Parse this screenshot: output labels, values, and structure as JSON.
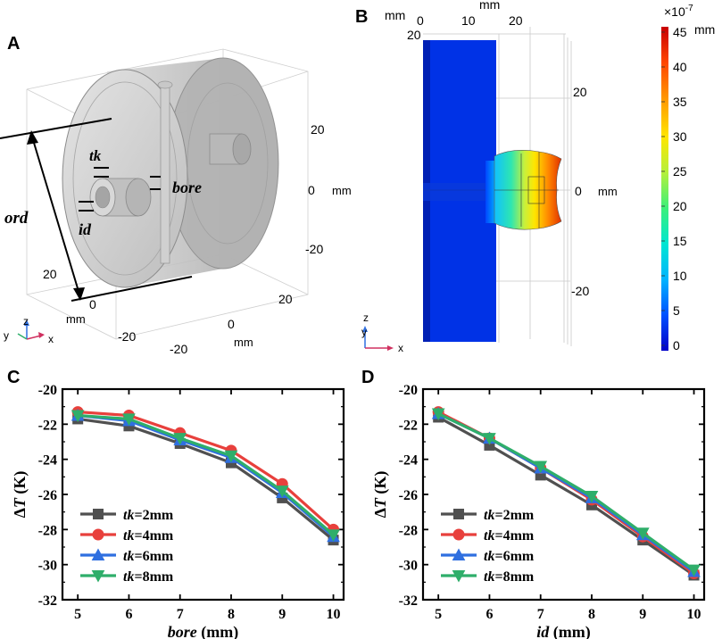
{
  "panels": {
    "A": {
      "letter": "A",
      "labels": {
        "tk": "tk",
        "bore": "bore",
        "ord": "ord",
        "id": "id"
      },
      "ticks_right": [
        "20",
        "0",
        "-20"
      ],
      "ticks_bottom_right": [
        "20",
        "0",
        "-20"
      ],
      "ticks_bottom_left": [
        "20",
        "0",
        "-20"
      ],
      "unit_right": "mm",
      "unit_bottom": "mm",
      "unit_left": "mm",
      "axes": {
        "z": "z",
        "y": "y",
        "x": "x"
      }
    },
    "B": {
      "letter": "B",
      "top_ticks": [
        "0",
        "10",
        "20"
      ],
      "top_unit": "mm",
      "left_label": "mm",
      "left_value": "20",
      "right_ticks": [
        "20",
        "0",
        "-20"
      ],
      "right_unit": "mm",
      "axes": {
        "z": "z",
        "y": "y",
        "x": "x"
      },
      "colorbar": {
        "exponent_base": "×10",
        "exponent_power": "-7",
        "unit": "mm",
        "ticks": [
          "45",
          "40",
          "35",
          "30",
          "25",
          "20",
          "15",
          "10",
          "5",
          "0"
        ],
        "stops": [
          "#0000c8",
          "#0050ff",
          "#00b4ff",
          "#00e6d2",
          "#3cf07a",
          "#b4f03c",
          "#ffe600",
          "#ff9600",
          "#ff4600",
          "#c80000"
        ]
      }
    }
  },
  "chart_data": [
    {
      "panel": "C",
      "type": "line",
      "letter": "C",
      "xlabel_italic": "bore",
      "xlabel_unit": " (mm)",
      "ylabel_delta": "Δ",
      "ylabel_var": "T",
      "ylabel_unit": " (K)",
      "x": [
        5,
        6,
        7,
        8,
        9,
        10
      ],
      "xticks": [
        "5",
        "6",
        "7",
        "8",
        "9",
        "10"
      ],
      "yticks": [
        "-20",
        "-22",
        "-24",
        "-26",
        "-28",
        "-30",
        "-32"
      ],
      "xlim": [
        4.7,
        10.2
      ],
      "ylim": [
        -32,
        -20
      ],
      "series": [
        {
          "name": "tk=2mm",
          "legend_var": "tk",
          "legend_val": "=2mm",
          "color": "#505050",
          "marker": "square",
          "values": [
            -21.7,
            -22.1,
            -23.1,
            -24.2,
            -26.2,
            -28.6
          ]
        },
        {
          "name": "tk=4mm",
          "legend_var": "tk",
          "legend_val": "=4mm",
          "color": "#e8403c",
          "marker": "circle",
          "values": [
            -21.3,
            -21.5,
            -22.5,
            -23.5,
            -25.4,
            -28.0
          ]
        },
        {
          "name": "tk=6mm",
          "legend_var": "tk",
          "legend_val": "=6mm",
          "color": "#2f6fe0",
          "marker": "triangle-up",
          "values": [
            -21.5,
            -21.8,
            -22.9,
            -23.9,
            -25.9,
            -28.4
          ]
        },
        {
          "name": "tk=8mm",
          "legend_var": "tk",
          "legend_val": "=8mm",
          "color": "#2fae6a",
          "marker": "triangle-down",
          "values": [
            -21.5,
            -21.7,
            -22.8,
            -23.8,
            -25.8,
            -28.3
          ]
        }
      ]
    },
    {
      "panel": "D",
      "type": "line",
      "letter": "D",
      "xlabel_italic": "id",
      "xlabel_unit": " (mm)",
      "ylabel_delta": "Δ",
      "ylabel_var": "T",
      "ylabel_unit": " (K)",
      "x": [
        5,
        6,
        7,
        8,
        9,
        10
      ],
      "xticks": [
        "5",
        "6",
        "7",
        "8",
        "9",
        "10"
      ],
      "yticks": [
        "-20",
        "-22",
        "-24",
        "-26",
        "-28",
        "-30",
        "-32"
      ],
      "xlim": [
        4.7,
        10.2
      ],
      "ylim": [
        -32,
        -20
      ],
      "series": [
        {
          "name": "tk=2mm",
          "legend_var": "tk",
          "legend_val": "=2mm",
          "color": "#505050",
          "marker": "square",
          "values": [
            -21.6,
            -23.2,
            -24.9,
            -26.6,
            -28.6,
            -30.6
          ]
        },
        {
          "name": "tk=4mm",
          "legend_var": "tk",
          "legend_val": "=4mm",
          "color": "#e8403c",
          "marker": "circle",
          "values": [
            -21.3,
            -22.8,
            -24.5,
            -26.3,
            -28.4,
            -30.5
          ]
        },
        {
          "name": "tk=6mm",
          "legend_var": "tk",
          "legend_val": "=6mm",
          "color": "#2f6fe0",
          "marker": "triangle-up",
          "values": [
            -21.4,
            -22.8,
            -24.5,
            -26.2,
            -28.3,
            -30.4
          ]
        },
        {
          "name": "tk=8mm",
          "legend_var": "tk",
          "legend_val": "=8mm",
          "color": "#2fae6a",
          "marker": "triangle-down",
          "values": [
            -21.4,
            -22.8,
            -24.4,
            -26.1,
            -28.2,
            -30.3
          ]
        }
      ]
    }
  ]
}
